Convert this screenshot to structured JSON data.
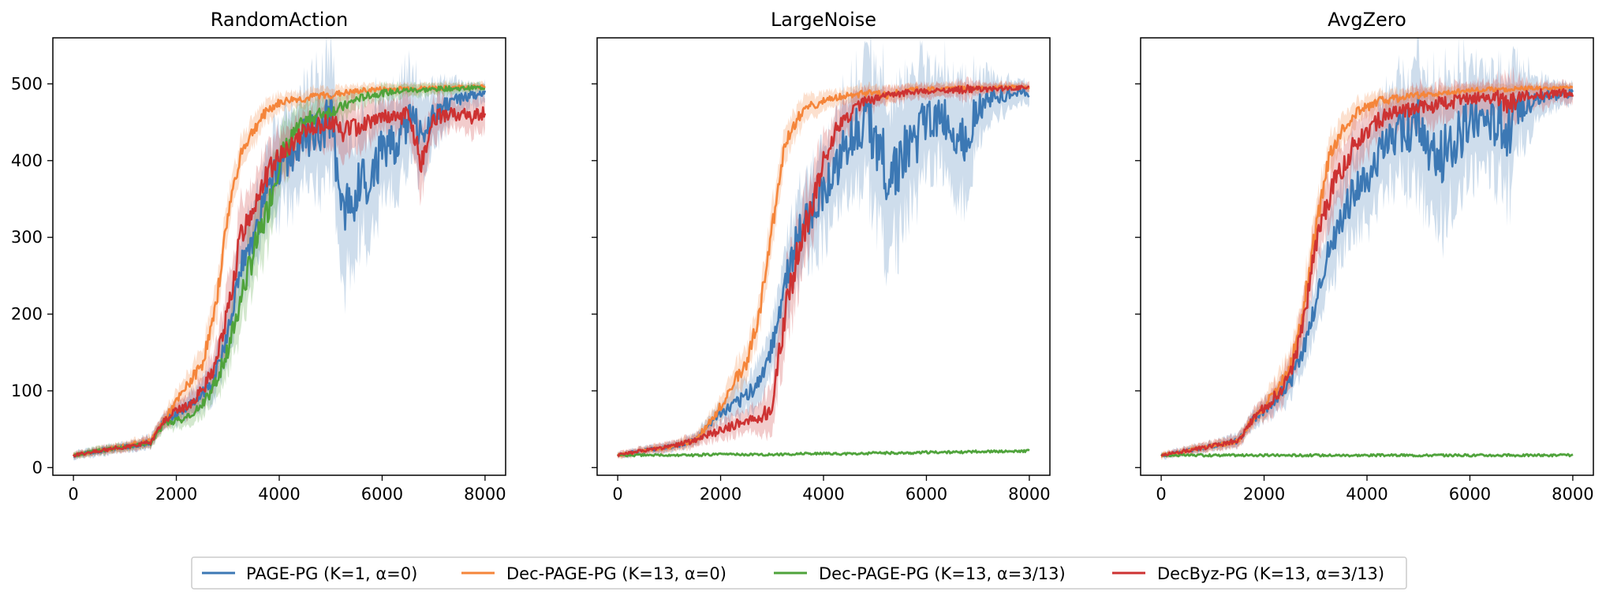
{
  "colors": {
    "PAGE-PG (K=1, α=0)": "#3c78b4",
    "Dec-PAGE-PG (K=13, α=0)": "#f5853a",
    "Dec-PAGE-PG (K=13, α=3/13)": "#4fa33b",
    "DecByz-PG (K=13, α=3/13)": "#cd3232"
  },
  "legend": {
    "placement": "bottom-center",
    "items": [
      "PAGE-PG (K=1, α=0)",
      "Dec-PAGE-PG (K=13, α=0)",
      "Dec-PAGE-PG (K=13, α=3/13)",
      "DecByz-PG (K=13, α=3/13)"
    ]
  },
  "chart_data": [
    {
      "type": "line",
      "title": "RandomAction",
      "xlabel": "",
      "ylabel": "",
      "xlim": [
        -400,
        8400
      ],
      "ylim": [
        -10,
        560
      ],
      "xticks": [
        0,
        2000,
        4000,
        6000,
        8000
      ],
      "yticks": [
        0,
        100,
        200,
        300,
        400,
        500
      ],
      "grid": false,
      "x": [
        0,
        500,
        1000,
        1500,
        1750,
        2000,
        2250,
        2500,
        2750,
        3000,
        3250,
        3500,
        3750,
        4000,
        4250,
        4500,
        4750,
        5000,
        5250,
        5500,
        5750,
        6000,
        6250,
        6500,
        6750,
        7000,
        7250,
        7500,
        7750,
        8000
      ],
      "series": [
        {
          "name": "PAGE-PG (K=1, α=0)",
          "values": [
            16,
            22,
            27,
            33,
            60,
            70,
            80,
            95,
            120,
            170,
            260,
            300,
            360,
            390,
            410,
            430,
            440,
            450,
            340,
            360,
            380,
            410,
            420,
            450,
            440,
            460,
            470,
            480,
            485,
            487
          ],
          "band": [
            5,
            6,
            6,
            8,
            10,
            12,
            14,
            18,
            25,
            35,
            40,
            45,
            50,
            55,
            60,
            60,
            70,
            80,
            90,
            85,
            80,
            70,
            60,
            60,
            50,
            40,
            30,
            20,
            15,
            12
          ]
        },
        {
          "name": "Dec-PAGE-PG (K=13, α=0)",
          "values": [
            16,
            22,
            28,
            35,
            60,
            85,
            110,
            135,
            200,
            330,
            410,
            440,
            465,
            475,
            480,
            480,
            485,
            485,
            488,
            490,
            492,
            493,
            493,
            494,
            494,
            495,
            495,
            496,
            496,
            497
          ],
          "band": [
            4,
            5,
            6,
            7,
            10,
            14,
            16,
            20,
            25,
            25,
            20,
            18,
            15,
            12,
            10,
            10,
            10,
            10,
            9,
            8,
            8,
            7,
            7,
            7,
            6,
            6,
            6,
            5,
            5,
            5
          ]
        },
        {
          "name": "Dec-PAGE-PG (K=13, α=3/13)",
          "values": [
            16,
            22,
            27,
            32,
            55,
            62,
            65,
            80,
            110,
            150,
            220,
            280,
            330,
            400,
            430,
            450,
            460,
            465,
            470,
            480,
            485,
            488,
            490,
            492,
            492,
            493,
            494,
            494,
            495,
            495
          ],
          "band": [
            4,
            5,
            5,
            6,
            8,
            10,
            12,
            15,
            20,
            30,
            40,
            45,
            45,
            40,
            30,
            25,
            20,
            18,
            15,
            12,
            10,
            10,
            9,
            8,
            8,
            7,
            7,
            6,
            6,
            6
          ]
        },
        {
          "name": "DecByz-PG (K=13, α=3/13)",
          "values": [
            16,
            22,
            27,
            33,
            60,
            75,
            80,
            100,
            130,
            200,
            300,
            340,
            380,
            410,
            420,
            440,
            445,
            450,
            440,
            445,
            450,
            460,
            455,
            460,
            400,
            455,
            460,
            460,
            455,
            465
          ],
          "band": [
            4,
            5,
            6,
            7,
            10,
            12,
            14,
            18,
            25,
            35,
            40,
            40,
            35,
            30,
            25,
            22,
            25,
            30,
            35,
            30,
            25,
            20,
            20,
            25,
            40,
            25,
            20,
            20,
            25,
            20
          ]
        }
      ]
    },
    {
      "type": "line",
      "title": "LargeNoise",
      "xlabel": "",
      "ylabel": "",
      "xlim": [
        -400,
        8400
      ],
      "ylim": [
        -10,
        560
      ],
      "xticks": [
        0,
        2000,
        4000,
        6000,
        8000
      ],
      "yticks": [
        0,
        100,
        200,
        300,
        400,
        500
      ],
      "grid": false,
      "x": [
        0,
        500,
        1000,
        1500,
        1750,
        2000,
        2250,
        2500,
        2750,
        3000,
        3250,
        3500,
        3750,
        4000,
        4250,
        4500,
        4750,
        5000,
        5250,
        5500,
        5750,
        6000,
        6250,
        6500,
        6750,
        7000,
        7250,
        7500,
        7750,
        8000
      ],
      "series": [
        {
          "name": "PAGE-PG (K=1, α=0)",
          "values": [
            16,
            22,
            27,
            35,
            55,
            70,
            80,
            95,
            110,
            160,
            240,
            300,
            330,
            360,
            390,
            430,
            450,
            440,
            380,
            400,
            420,
            450,
            460,
            440,
            430,
            470,
            480,
            485,
            488,
            487
          ],
          "band": [
            4,
            5,
            6,
            8,
            10,
            14,
            18,
            22,
            28,
            35,
            45,
            55,
            60,
            60,
            60,
            65,
            75,
            95,
            100,
            90,
            85,
            70,
            60,
            70,
            80,
            45,
            30,
            20,
            15,
            12
          ]
        },
        {
          "name": "Dec-PAGE-PG (K=13, α=0)",
          "values": [
            16,
            22,
            27,
            35,
            55,
            80,
            110,
            135,
            200,
            310,
            420,
            455,
            470,
            478,
            482,
            485,
            487,
            488,
            485,
            490,
            492,
            492,
            493,
            494,
            494,
            495,
            495,
            495,
            496,
            496
          ],
          "band": [
            4,
            5,
            6,
            8,
            10,
            14,
            18,
            22,
            25,
            28,
            22,
            18,
            15,
            12,
            10,
            10,
            10,
            10,
            10,
            9,
            8,
            8,
            7,
            7,
            7,
            6,
            6,
            6,
            5,
            5
          ]
        },
        {
          "name": "Dec-PAGE-PG (K=13, α=3/13)",
          "values": [
            16,
            16,
            16,
            16,
            17,
            17,
            17,
            17,
            17,
            17,
            17,
            18,
            18,
            18,
            18,
            18,
            18,
            19,
            19,
            19,
            19,
            20,
            20,
            20,
            20,
            21,
            21,
            21,
            21,
            22
          ],
          "band": [
            2,
            2,
            2,
            2,
            2,
            2,
            2,
            2,
            2,
            2,
            2,
            2,
            2,
            2,
            2,
            2,
            2,
            2,
            2,
            2,
            2,
            2,
            2,
            2,
            2,
            2,
            2,
            2,
            2,
            2
          ]
        },
        {
          "name": "DecByz-PG (K=13, α=3/13)",
          "values": [
            16,
            22,
            27,
            35,
            43,
            48,
            55,
            60,
            65,
            80,
            200,
            280,
            340,
            400,
            440,
            460,
            475,
            480,
            485,
            487,
            490,
            490,
            491,
            492,
            492,
            493,
            493,
            494,
            495,
            495
          ],
          "band": [
            4,
            5,
            6,
            8,
            10,
            12,
            14,
            15,
            18,
            30,
            45,
            50,
            45,
            35,
            25,
            20,
            15,
            12,
            10,
            10,
            9,
            9,
            8,
            8,
            15,
            8,
            7,
            7,
            6,
            6
          ]
        }
      ]
    },
    {
      "type": "line",
      "title": "AvgZero",
      "xlabel": "",
      "ylabel": "",
      "xlim": [
        -400,
        8400
      ],
      "ylim": [
        -10,
        560
      ],
      "xticks": [
        0,
        2000,
        4000,
        6000,
        8000
      ],
      "yticks": [
        0,
        100,
        200,
        300,
        400,
        500
      ],
      "grid": false,
      "x": [
        0,
        500,
        1000,
        1500,
        1750,
        2000,
        2250,
        2500,
        2750,
        3000,
        3250,
        3500,
        3750,
        4000,
        4250,
        4500,
        4750,
        5000,
        5250,
        5500,
        5750,
        6000,
        6250,
        6500,
        6750,
        7000,
        7250,
        7500,
        7750,
        8000
      ],
      "series": [
        {
          "name": "PAGE-PG (K=1, α=0)",
          "values": [
            16,
            22,
            28,
            35,
            60,
            75,
            90,
            110,
            150,
            210,
            280,
            320,
            360,
            380,
            410,
            430,
            440,
            450,
            390,
            410,
            430,
            450,
            460,
            450,
            440,
            470,
            480,
            485,
            487,
            488
          ],
          "band": [
            4,
            5,
            6,
            8,
            10,
            14,
            18,
            22,
            28,
            35,
            45,
            50,
            55,
            55,
            60,
            60,
            65,
            80,
            95,
            90,
            80,
            70,
            60,
            70,
            80,
            50,
            30,
            20,
            15,
            12
          ]
        },
        {
          "name": "Dec-PAGE-PG (K=13, α=0)",
          "values": [
            16,
            22,
            28,
            35,
            60,
            80,
            100,
            130,
            200,
            310,
            400,
            440,
            460,
            470,
            478,
            480,
            483,
            485,
            487,
            488,
            490,
            491,
            492,
            493,
            493,
            494,
            494,
            495,
            495,
            495
          ],
          "band": [
            4,
            5,
            6,
            8,
            10,
            14,
            18,
            22,
            28,
            30,
            25,
            20,
            16,
            14,
            12,
            11,
            10,
            10,
            9,
            9,
            8,
            8,
            7,
            7,
            7,
            6,
            6,
            6,
            5,
            5
          ]
        },
        {
          "name": "Dec-PAGE-PG (K=13, α=3/13)",
          "values": [
            16,
            16,
            16,
            16,
            16,
            16,
            16,
            16,
            16,
            16,
            16,
            16,
            16,
            16,
            16,
            16,
            16,
            16,
            16,
            16,
            16,
            16,
            16,
            16,
            16,
            16,
            16,
            16,
            16,
            16
          ],
          "band": [
            2,
            2,
            2,
            2,
            2,
            2,
            2,
            2,
            2,
            2,
            2,
            2,
            2,
            2,
            2,
            2,
            2,
            2,
            2,
            2,
            2,
            2,
            2,
            2,
            2,
            2,
            2,
            2,
            2,
            2
          ]
        },
        {
          "name": "DecByz-PG (K=13, α=3/13)",
          "values": [
            16,
            22,
            28,
            35,
            60,
            78,
            95,
            120,
            180,
            290,
            350,
            390,
            420,
            440,
            455,
            460,
            465,
            470,
            472,
            475,
            478,
            480,
            482,
            484,
            470,
            485,
            486,
            487,
            488,
            488
          ],
          "band": [
            4,
            5,
            6,
            8,
            10,
            14,
            18,
            22,
            28,
            35,
            40,
            35,
            30,
            28,
            25,
            22,
            22,
            25,
            25,
            22,
            20,
            20,
            18,
            20,
            35,
            20,
            16,
            14,
            12,
            12
          ]
        }
      ]
    }
  ]
}
